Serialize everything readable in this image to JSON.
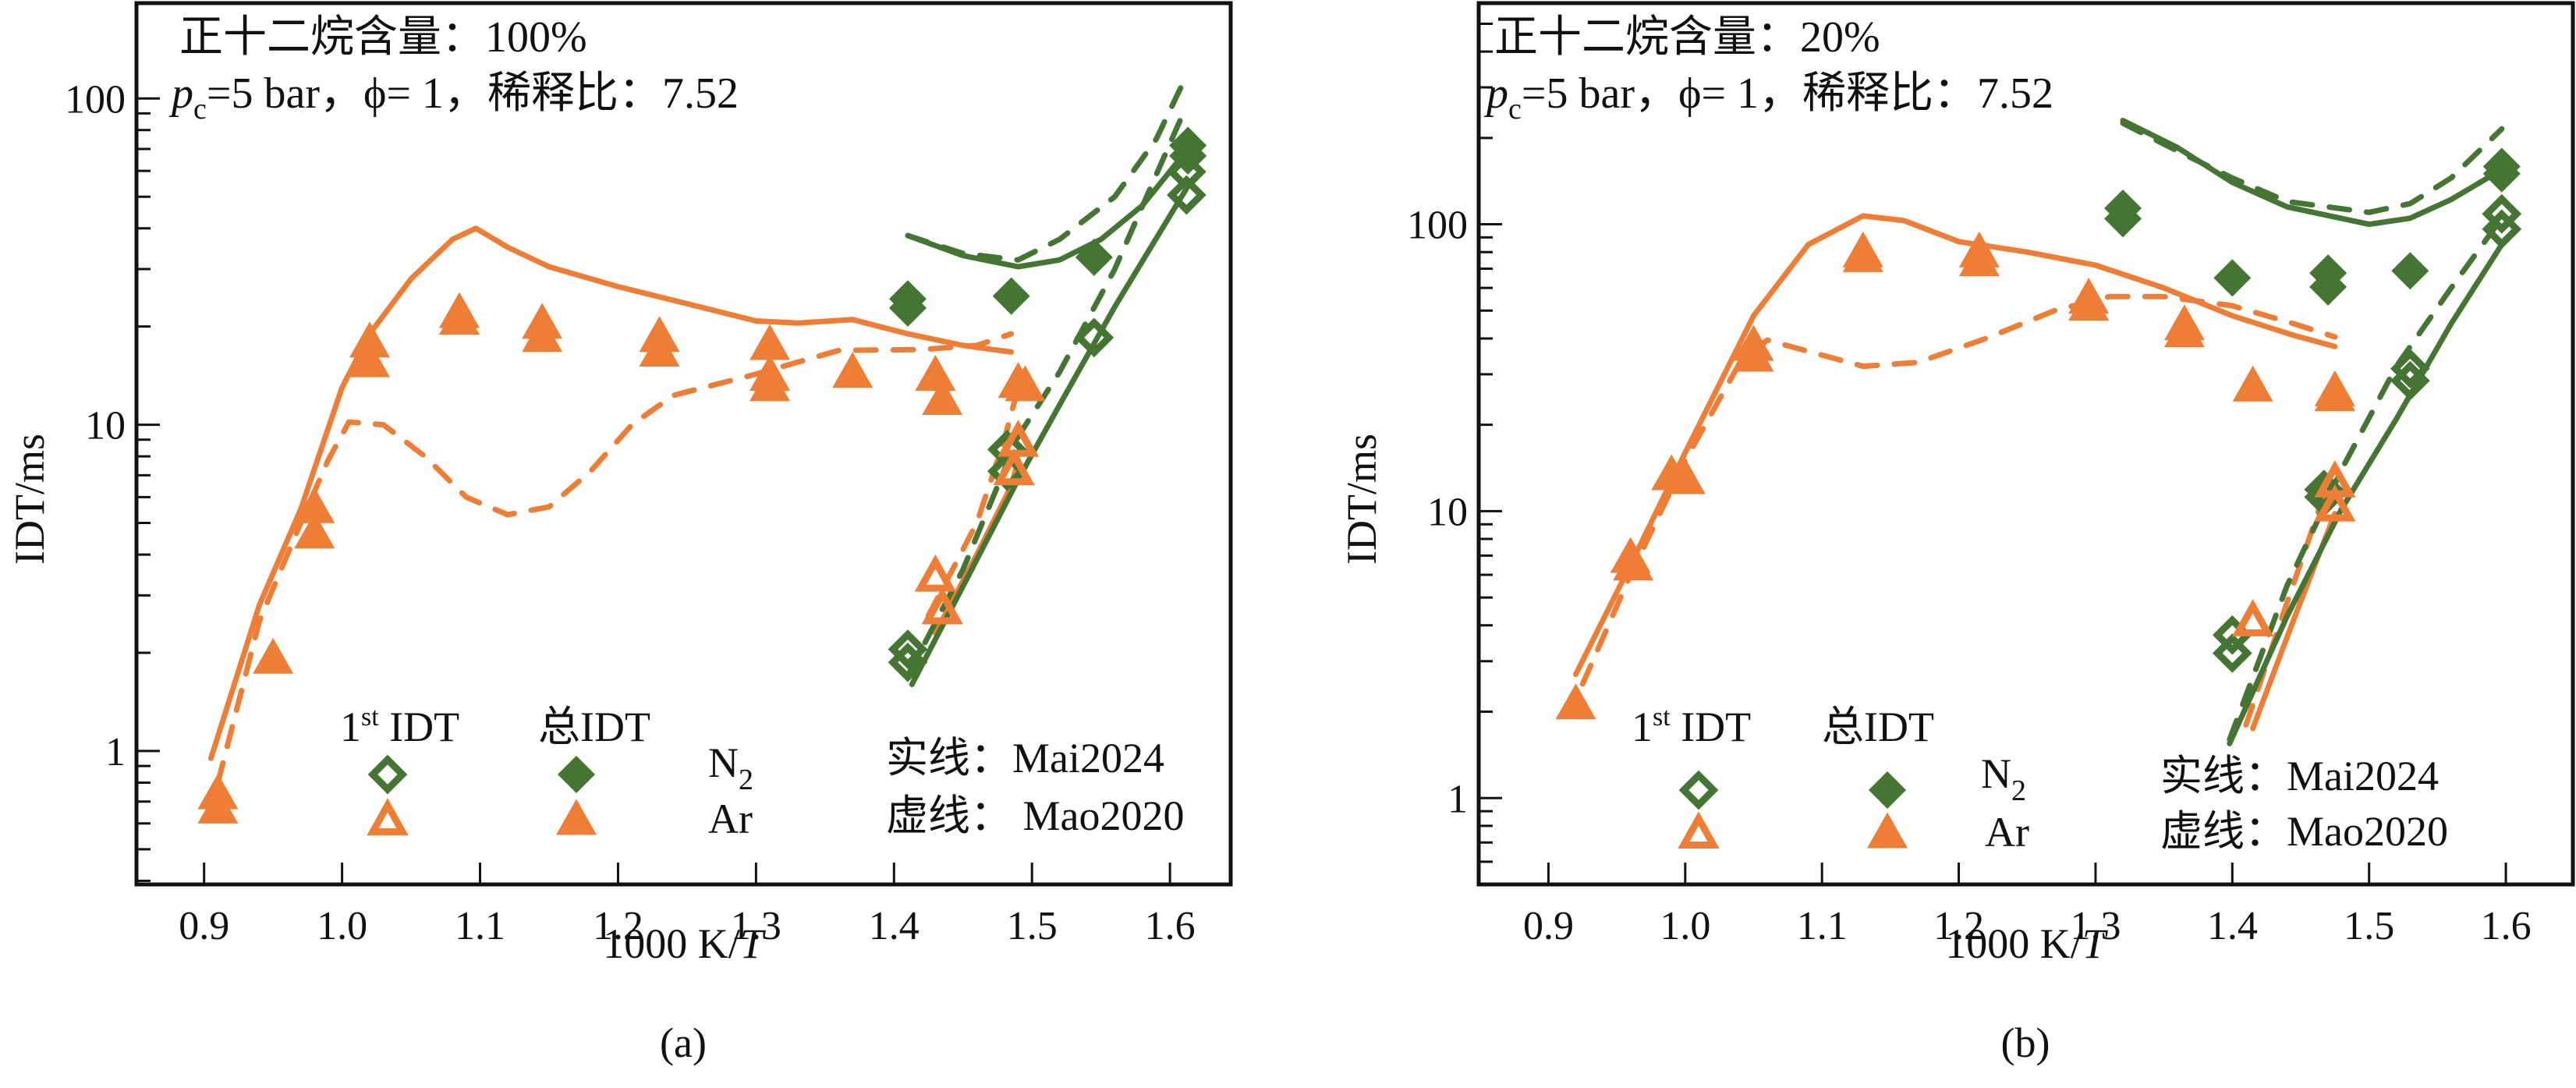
{
  "figure": {
    "colors": {
      "orange": "#ee7d36",
      "green": "#447532",
      "axis": "#111111"
    }
  },
  "chart_data": [
    {
      "type": "scatter",
      "panel_label": "(a)",
      "title_line1": "正十二烷含量：100%",
      "title_line2_prefix": "p",
      "title_line2_sub": "c",
      "title_line2_rest": "=5 bar，ϕ= 1，稀释比：7.52",
      "xlabel_prefix": "1000 K/",
      "xlabel_italic": "T",
      "ylabel": "IDT/ms",
      "yscale": "log",
      "xlim": [
        0.851,
        1.644
      ],
      "ylim": [
        0.39,
        196
      ],
      "xticks": [
        0.9,
        1.0,
        1.1,
        1.2,
        1.3,
        1.4,
        1.5,
        1.6
      ],
      "xtick_labels": [
        "0.9",
        "1.0",
        "1.1",
        "1.2",
        "1.3",
        "1.4",
        "1.5",
        "1.6"
      ],
      "yticks": [
        1,
        10,
        100
      ],
      "ytick_labels": [
        "1",
        "10",
        "100"
      ],
      "legend": {
        "header_first": "1",
        "header_first_sup": "st",
        "header_first_rest": " IDT",
        "header_total": "总IDT",
        "row_n2": "N",
        "row_n2_sub": "2",
        "row_ar": "Ar",
        "solid_line": "实线：Mai2024",
        "dashed_line": "虚线： Mao2020"
      },
      "series": [
        {
          "name": "N2 1st IDT",
          "marker": "diamond-open",
          "color": "green",
          "x": [
            1.41,
            1.41,
            1.482,
            1.482,
            1.545,
            1.612,
            1.612
          ],
          "y": [
            2.05,
            1.87,
            8.4,
            7.2,
            18.5,
            59.6,
            50.6
          ]
        },
        {
          "name": "N2 总IDT",
          "marker": "diamond-filled",
          "color": "green",
          "x": [
            1.41,
            1.41,
            1.485,
            1.545,
            1.613,
            1.613
          ],
          "y": [
            24.3,
            22.8,
            24.8,
            32.6,
            71.8,
            66.7
          ]
        },
        {
          "name": "Ar 1st IDT",
          "marker": "triangle-open",
          "color": "orange",
          "x": [
            1.43,
            1.435,
            1.487,
            1.49
          ],
          "y": [
            3.4,
            2.7,
            7.2,
            8.8
          ]
        },
        {
          "name": "Ar 总IDT",
          "marker": "triangle-filled",
          "color": "orange",
          "x": [
            0.91,
            0.91,
            0.95,
            0.98,
            0.98,
            1.02,
            1.02,
            1.085,
            1.085,
            1.145,
            1.145,
            1.23,
            1.23,
            1.31,
            1.31,
            1.31,
            1.37,
            1.43,
            1.435,
            1.49,
            1.495
          ],
          "y": [
            0.73,
            0.66,
            1.9,
            5.5,
            4.6,
            17.7,
            15.4,
            21.8,
            20.8,
            20.2,
            18.4,
            18.4,
            16.6,
            17.4,
            14.0,
            13.0,
            14.3,
            14.0,
            11.8,
            13.3,
            13.0
          ]
        }
      ],
      "lines": [
        {
          "name": "Mai2024 Ar 总IDT",
          "style": "solid",
          "color": "orange",
          "x": [
            0.905,
            0.94,
            0.97,
            1.0,
            1.02,
            1.05,
            1.08,
            1.097,
            1.12,
            1.15,
            1.2,
            1.25,
            1.3,
            1.33,
            1.37,
            1.41,
            1.45,
            1.485
          ],
          "y": [
            0.95,
            2.8,
            5.5,
            13,
            19,
            28,
            37,
            40,
            35,
            30.5,
            26.5,
            23.5,
            20.8,
            20.5,
            21,
            19,
            17.5,
            16.7
          ]
        },
        {
          "name": "Mao2020 Ar 总IDT",
          "style": "dashed",
          "color": "orange",
          "x": [
            0.91,
            0.94,
            0.97,
            0.99,
            1.005,
            1.03,
            1.06,
            1.09,
            1.12,
            1.15,
            1.18,
            1.21,
            1.24,
            1.3,
            1.36,
            1.42,
            1.46,
            1.485
          ],
          "y": [
            0.8,
            2.5,
            5.0,
            7.8,
            10.2,
            10.0,
            8.0,
            6.0,
            5.3,
            5.6,
            7.2,
            10.0,
            12.3,
            14.3,
            16.9,
            17.0,
            17.5,
            19.0
          ]
        },
        {
          "name": "Mai2024 Ar 1st IDT",
          "style": "solid",
          "color": "orange",
          "x": [
            1.43,
            1.46,
            1.485,
            1.49
          ],
          "y": [
            2.3,
            4.0,
            6.5,
            7.8
          ]
        },
        {
          "name": "Mao2020 Ar 1st IDT",
          "style": "dashed",
          "color": "orange",
          "x": [
            1.425,
            1.46,
            1.48,
            1.49
          ],
          "y": [
            2.6,
            5.0,
            9.0,
            13.0
          ]
        },
        {
          "name": "Mai2024 N2 总IDT",
          "style": "solid",
          "color": "green",
          "x": [
            1.41,
            1.45,
            1.49,
            1.52,
            1.55,
            1.58,
            1.613
          ],
          "y": [
            38,
            33,
            30.5,
            32,
            37,
            47,
            70
          ]
        },
        {
          "name": "Mao2020 N2 总IDT",
          "style": "dashed",
          "color": "green",
          "x": [
            1.41,
            1.45,
            1.49,
            1.52,
            1.56,
            1.59,
            1.613
          ],
          "y": [
            38,
            33.5,
            32,
            37,
            50,
            75,
            120
          ]
        },
        {
          "name": "Mai2024 N2 1st IDT",
          "style": "solid",
          "color": "green",
          "x": [
            1.413,
            1.45,
            1.49,
            1.52,
            1.56,
            1.612
          ],
          "y": [
            1.6,
            3.2,
            6.8,
            11.5,
            23,
            53
          ]
        },
        {
          "name": "Mao2020 N2 1st IDT",
          "style": "dashed",
          "color": "green",
          "x": [
            1.41,
            1.45,
            1.49,
            1.52,
            1.56,
            1.612
          ],
          "y": [
            1.7,
            3.6,
            9.2,
            14.5,
            30,
            95
          ]
        }
      ]
    },
    {
      "type": "scatter",
      "panel_label": "(b)",
      "title_line1": "正十二烷含量：20%",
      "title_line2_prefix": "p",
      "title_line2_sub": "c",
      "title_line2_rest": "=5 bar，ϕ= 1，稀释比：7.52",
      "xlabel_prefix": "1000 K/",
      "xlabel_italic": "T",
      "ylabel": "IDT/ms",
      "yscale": "log",
      "xlim": [
        0.849,
        1.649
      ],
      "ylim": [
        0.5,
        590
      ],
      "xticks": [
        0.9,
        1.0,
        1.1,
        1.2,
        1.3,
        1.4,
        1.5,
        1.6
      ],
      "xtick_labels": [
        "0.9",
        "1.0",
        "1.1",
        "1.2",
        "1.3",
        "1.4",
        "1.5",
        "1.6"
      ],
      "yticks": [
        1,
        10,
        100
      ],
      "ytick_labels": [
        "1",
        "10",
        "100"
      ],
      "legend": {
        "header_first": "1",
        "header_first_sup": "st",
        "header_first_rest": " IDT",
        "header_total": "总IDT",
        "row_n2": "N",
        "row_n2_sub": "2",
        "row_ar": "Ar",
        "solid_line": "实线：Mai2024",
        "dashed_line": "虚线：Mao2020"
      },
      "series": [
        {
          "name": "N2 1st IDT",
          "marker": "diamond-open",
          "color": "green",
          "x": [
            1.4,
            1.4,
            1.467,
            1.467,
            1.53,
            1.53,
            1.597,
            1.597
          ],
          "y": [
            3.7,
            3.2,
            11.9,
            11.2,
            31.4,
            28.5,
            108.7,
            96.2
          ]
        },
        {
          "name": "N2 总IDT",
          "marker": "diamond-filled",
          "color": "green",
          "x": [
            1.32,
            1.32,
            1.4,
            1.47,
            1.47,
            1.53,
            1.597,
            1.597
          ],
          "y": [
            113.7,
            104.6,
            65.0,
            67.6,
            60.5,
            68.8,
            159,
            150
          ]
        },
        {
          "name": "Ar 1st IDT",
          "marker": "triangle-open",
          "color": "orange",
          "x": [
            1.415,
            1.475,
            1.475
          ],
          "y": [
            4.1,
            12.5,
            10.3
          ]
        },
        {
          "name": "Ar 总IDT",
          "marker": "triangle-filled",
          "color": "orange",
          "x": [
            0.92,
            0.96,
            0.962,
            0.99,
            1.0,
            1.05,
            1.05,
            1.13,
            1.13,
            1.215,
            1.215,
            1.295,
            1.295,
            1.365,
            1.365,
            1.415,
            1.475,
            1.475
          ],
          "y": [
            2.1,
            6.8,
            6.4,
            13.2,
            12.8,
            37.3,
            34.2,
            79,
            76,
            79,
            73.5,
            54.5,
            51.5,
            44,
            41.6,
            26.9,
            25.9,
            24.9
          ]
        }
      ],
      "lines": [
        {
          "name": "Mai2024 Ar 总IDT",
          "style": "solid",
          "color": "orange",
          "x": [
            0.92,
            0.96,
            1.0,
            1.05,
            1.09,
            1.13,
            1.16,
            1.2,
            1.25,
            1.3,
            1.35,
            1.4,
            1.445,
            1.475
          ],
          "y": [
            2.7,
            6.5,
            16,
            48,
            85,
            107,
            103,
            87,
            80,
            72,
            60,
            48,
            41,
            37.5
          ]
        },
        {
          "name": "Mao2020 Ar 总IDT",
          "style": "dashed",
          "color": "orange",
          "x": [
            0.925,
            0.96,
            1.0,
            1.04,
            1.06,
            1.1,
            1.13,
            1.17,
            1.22,
            1.27,
            1.31,
            1.35,
            1.4,
            1.445,
            1.475
          ],
          "y": [
            2.5,
            6,
            15,
            33,
            39.5,
            35,
            32,
            33,
            40,
            50,
            56,
            56,
            52,
            45,
            40.5
          ]
        },
        {
          "name": "Mai2024 Ar 1st IDT",
          "style": "solid",
          "color": "orange",
          "x": [
            1.415,
            1.445,
            1.475
          ],
          "y": [
            1.75,
            4.2,
            9.8
          ]
        },
        {
          "name": "Mao2020 Ar 1st IDT",
          "style": "dashed",
          "color": "orange",
          "x": [
            1.41,
            1.44,
            1.47
          ],
          "y": [
            1.8,
            4.8,
            12.5
          ]
        },
        {
          "name": "Mai2024 N2 总IDT",
          "style": "solid",
          "color": "green",
          "x": [
            1.32,
            1.36,
            1.4,
            1.44,
            1.5,
            1.53,
            1.56,
            1.597
          ],
          "y": [
            230,
            185,
            140,
            115,
            100,
            105,
            122,
            155
          ]
        },
        {
          "name": "Mao2020 N2 总IDT",
          "style": "dashed",
          "color": "green",
          "x": [
            1.32,
            1.36,
            1.4,
            1.44,
            1.5,
            1.53,
            1.56,
            1.597
          ],
          "y": [
            225,
            180,
            145,
            120,
            110,
            118,
            145,
            215
          ]
        },
        {
          "name": "Mai2024 N2 1st IDT",
          "style": "solid",
          "color": "green",
          "x": [
            1.398,
            1.44,
            1.48,
            1.52,
            1.56,
            1.597
          ],
          "y": [
            1.55,
            4.3,
            10.2,
            21,
            45,
            85
          ]
        },
        {
          "name": "Mao2020 N2 1st IDT",
          "style": "dashed",
          "color": "green",
          "x": [
            1.398,
            1.44,
            1.48,
            1.52,
            1.56,
            1.597
          ],
          "y": [
            1.6,
            5.5,
            14,
            32,
            60,
            105
          ]
        }
      ]
    }
  ]
}
